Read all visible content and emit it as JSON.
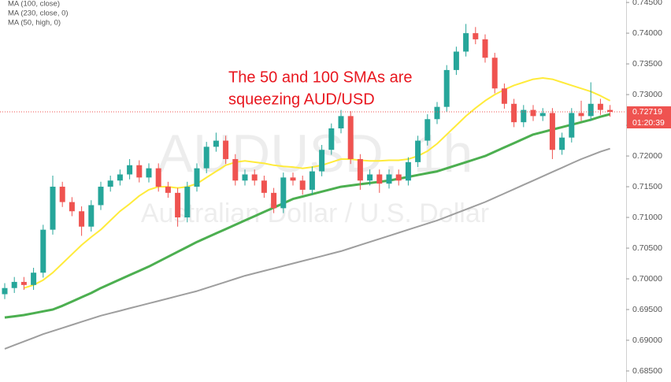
{
  "chart_data": {
    "type": "candlestick",
    "watermark": "AUDUSD, 1h",
    "watermark_subtitle": "Australian Dollar / U.S. Dollar",
    "annotation": [
      "The 50 and 100 SMAs are",
      "squeezing AUD/USD"
    ],
    "annotation_color": "#e8171f",
    "ylim": [
      0.6841,
      0.7454
    ],
    "yticks": [
      {
        "value": 0.745,
        "label": "0.74500"
      },
      {
        "value": 0.74,
        "label": "0.74000"
      },
      {
        "value": 0.735,
        "label": "0.73500"
      },
      {
        "value": 0.73,
        "label": "0.73000"
      },
      {
        "value": 0.725,
        "label": "0.72500"
      },
      {
        "value": 0.72,
        "label": "0.72000"
      },
      {
        "value": 0.715,
        "label": "0.71500"
      },
      {
        "value": 0.71,
        "label": "0.71000"
      },
      {
        "value": 0.705,
        "label": "0.70500"
      },
      {
        "value": 0.7,
        "label": "0.70000"
      },
      {
        "value": 0.695,
        "label": "0.69500"
      },
      {
        "value": 0.69,
        "label": "0.69000"
      },
      {
        "value": 0.685,
        "label": "0.68500"
      }
    ],
    "last_price": {
      "value": 0.72719,
      "label": "0.72719"
    },
    "last_price_color": "#ef5350",
    "countdown": "01:20:39",
    "up_color": "#26a69a",
    "down_color": "#ef5350",
    "open": [
      0.6975,
      0.6985,
      0.6995,
      0.699,
      0.701,
      0.708,
      0.715,
      0.7125,
      0.711,
      0.7085,
      0.712,
      0.715,
      0.716,
      0.717,
      0.7185,
      0.7165,
      0.718,
      0.715,
      0.714,
      0.71,
      0.715,
      0.718,
      0.7215,
      0.7225,
      0.7195,
      0.716,
      0.717,
      0.716,
      0.714,
      0.7115,
      0.7165,
      0.716,
      0.7145,
      0.7175,
      0.721,
      0.7245,
      0.7265,
      0.7195,
      0.716,
      0.717,
      0.7155,
      0.717,
      0.716,
      0.719,
      0.7225,
      0.726,
      0.728,
      0.734,
      0.737,
      0.74,
      0.739,
      0.736,
      0.731,
      0.7285,
      0.7255,
      0.7275,
      0.7265,
      0.727,
      0.721,
      0.723,
      0.727,
      0.7265,
      0.7285,
      0.7275
    ],
    "high": [
      0.6993,
      0.7003,
      0.7003,
      0.7018,
      0.7088,
      0.7168,
      0.7158,
      0.7133,
      0.7118,
      0.7128,
      0.7158,
      0.7168,
      0.7178,
      0.7195,
      0.7193,
      0.7188,
      0.7188,
      0.7158,
      0.7148,
      0.7158,
      0.7188,
      0.7223,
      0.7238,
      0.7233,
      0.7203,
      0.7178,
      0.7178,
      0.7168,
      0.7148,
      0.7173,
      0.7173,
      0.7168,
      0.7183,
      0.7218,
      0.7253,
      0.7275,
      0.7273,
      0.7203,
      0.7178,
      0.7178,
      0.7178,
      0.7178,
      0.7198,
      0.7233,
      0.7268,
      0.7288,
      0.7348,
      0.7378,
      0.7415,
      0.741,
      0.7398,
      0.7368,
      0.7318,
      0.7293,
      0.7283,
      0.7283,
      0.7278,
      0.7278,
      0.7238,
      0.7278,
      0.729,
      0.732,
      0.7293,
      0.7283
    ],
    "low": [
      0.6967,
      0.6977,
      0.6982,
      0.6982,
      0.7002,
      0.7072,
      0.7117,
      0.7102,
      0.707,
      0.7077,
      0.7112,
      0.7142,
      0.7152,
      0.7162,
      0.7157,
      0.7157,
      0.7142,
      0.7132,
      0.7085,
      0.7092,
      0.7142,
      0.7172,
      0.7207,
      0.7187,
      0.7152,
      0.7152,
      0.7152,
      0.7132,
      0.7107,
      0.7107,
      0.7152,
      0.7137,
      0.7137,
      0.7167,
      0.7202,
      0.7237,
      0.7187,
      0.7145,
      0.7152,
      0.714,
      0.7147,
      0.7152,
      0.7152,
      0.7182,
      0.7217,
      0.7252,
      0.7272,
      0.7332,
      0.7362,
      0.7382,
      0.7352,
      0.7302,
      0.7277,
      0.7247,
      0.7247,
      0.7257,
      0.7257,
      0.7195,
      0.7202,
      0.7222,
      0.7257,
      0.7257,
      0.7267,
      0.7264
    ],
    "close": [
      0.6985,
      0.6995,
      0.699,
      0.701,
      0.708,
      0.715,
      0.7125,
      0.711,
      0.7085,
      0.712,
      0.715,
      0.716,
      0.717,
      0.7185,
      0.7165,
      0.718,
      0.715,
      0.714,
      0.71,
      0.715,
      0.718,
      0.7215,
      0.7225,
      0.7195,
      0.716,
      0.717,
      0.716,
      0.714,
      0.7115,
      0.7165,
      0.716,
      0.7145,
      0.7175,
      0.721,
      0.7245,
      0.7265,
      0.7195,
      0.716,
      0.717,
      0.7155,
      0.717,
      0.716,
      0.719,
      0.7225,
      0.726,
      0.728,
      0.734,
      0.737,
      0.74,
      0.739,
      0.736,
      0.731,
      0.7285,
      0.7255,
      0.7275,
      0.7265,
      0.727,
      0.721,
      0.723,
      0.727,
      0.7265,
      0.7285,
      0.7275,
      0.72719
    ],
    "series": [
      {
        "name": "MA (100, close)",
        "color": "#4caf50",
        "width": 3,
        "values": [
          0.6937,
          0.6939,
          0.6941,
          0.6944,
          0.6947,
          0.695,
          0.6956,
          0.6963,
          0.697,
          0.6977,
          0.6985,
          0.6992,
          0.6999,
          0.7006,
          0.7013,
          0.702,
          0.7028,
          0.7036,
          0.7044,
          0.7052,
          0.706,
          0.7067,
          0.7074,
          0.7081,
          0.7088,
          0.7095,
          0.7102,
          0.7109,
          0.7116,
          0.7123,
          0.713,
          0.7134,
          0.7138,
          0.7142,
          0.7146,
          0.715,
          0.7152,
          0.7154,
          0.7156,
          0.7158,
          0.716,
          0.7163,
          0.7166,
          0.7169,
          0.7172,
          0.7175,
          0.718,
          0.7185,
          0.719,
          0.7195,
          0.72,
          0.7207,
          0.7214,
          0.7221,
          0.7228,
          0.7235,
          0.7239,
          0.7243,
          0.7247,
          0.7251,
          0.7255,
          0.7259,
          0.7264,
          0.7268
        ]
      },
      {
        "name": "MA (230, close, 0)",
        "color": "#9e9e9e",
        "width": 2,
        "values": [
          0.6886,
          0.6892,
          0.6898,
          0.6904,
          0.691,
          0.6915,
          0.692,
          0.6925,
          0.693,
          0.6935,
          0.694,
          0.6944,
          0.6948,
          0.6952,
          0.6956,
          0.696,
          0.6964,
          0.6968,
          0.6972,
          0.6976,
          0.698,
          0.6985,
          0.699,
          0.6995,
          0.7,
          0.7005,
          0.7009,
          0.7013,
          0.7017,
          0.7021,
          0.7025,
          0.7029,
          0.7033,
          0.7037,
          0.7041,
          0.7045,
          0.705,
          0.7055,
          0.706,
          0.7065,
          0.707,
          0.7075,
          0.708,
          0.7085,
          0.709,
          0.7095,
          0.7101,
          0.7107,
          0.7113,
          0.7119,
          0.7125,
          0.7132,
          0.7139,
          0.7146,
          0.7153,
          0.716,
          0.7167,
          0.7174,
          0.7181,
          0.7188,
          0.7195,
          0.7201,
          0.7207,
          0.7212
        ]
      },
      {
        "name": "MA (50, high, 0)",
        "color": "#ffeb3b",
        "width": 2,
        "values": [
          null,
          null,
          0.6985,
          0.699,
          0.6998,
          0.701,
          0.7025,
          0.704,
          0.7055,
          0.7068,
          0.708,
          0.7095,
          0.711,
          0.7122,
          0.7135,
          0.7145,
          0.715,
          0.715,
          0.7148,
          0.715,
          0.7155,
          0.7165,
          0.7175,
          0.7185,
          0.719,
          0.7192,
          0.719,
          0.7188,
          0.7185,
          0.7183,
          0.7182,
          0.718,
          0.7182,
          0.7185,
          0.719,
          0.7195,
          0.7195,
          0.7193,
          0.7192,
          0.7192,
          0.7193,
          0.7193,
          0.7195,
          0.72,
          0.7208,
          0.722,
          0.7235,
          0.725,
          0.7265,
          0.7278,
          0.729,
          0.73,
          0.7308,
          0.7315,
          0.732,
          0.7325,
          0.7327,
          0.7325,
          0.732,
          0.7315,
          0.731,
          0.7305,
          0.7298,
          0.729
        ]
      }
    ]
  }
}
